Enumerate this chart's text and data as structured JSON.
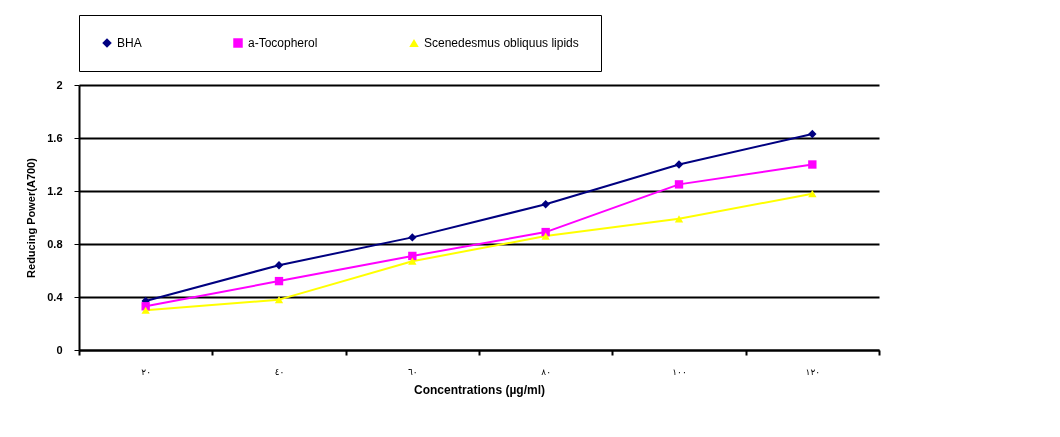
{
  "chart_data": {
    "type": "line",
    "xlabel": "Concentrations (µg/ml)",
    "ylabel": "Reducing Power(A700)",
    "categories": [
      "٢٠",
      "٤٠",
      "٦٠",
      "٨٠",
      "١٠٠",
      "١٢٠"
    ],
    "series": [
      {
        "name": "BHA",
        "color": "#000080",
        "marker": "diamond",
        "values": [
          0.37,
          0.64,
          0.85,
          1.1,
          1.4,
          1.63
        ]
      },
      {
        "name": "a-Tocopherol",
        "color": "#ff00ff",
        "marker": "square",
        "values": [
          0.33,
          0.52,
          0.71,
          0.89,
          1.25,
          1.4
        ]
      },
      {
        "name": "Scenedesmus obliquus lipids",
        "color": "#ffff00",
        "marker": "triangle",
        "values": [
          0.3,
          0.38,
          0.67,
          0.86,
          0.99,
          1.18
        ]
      }
    ],
    "ylim": [
      0,
      2
    ],
    "yticks": [
      0,
      0.4,
      0.8,
      1.2,
      1.6,
      2
    ],
    "grid": "y",
    "legend": "top",
    "line_style": "solid"
  }
}
